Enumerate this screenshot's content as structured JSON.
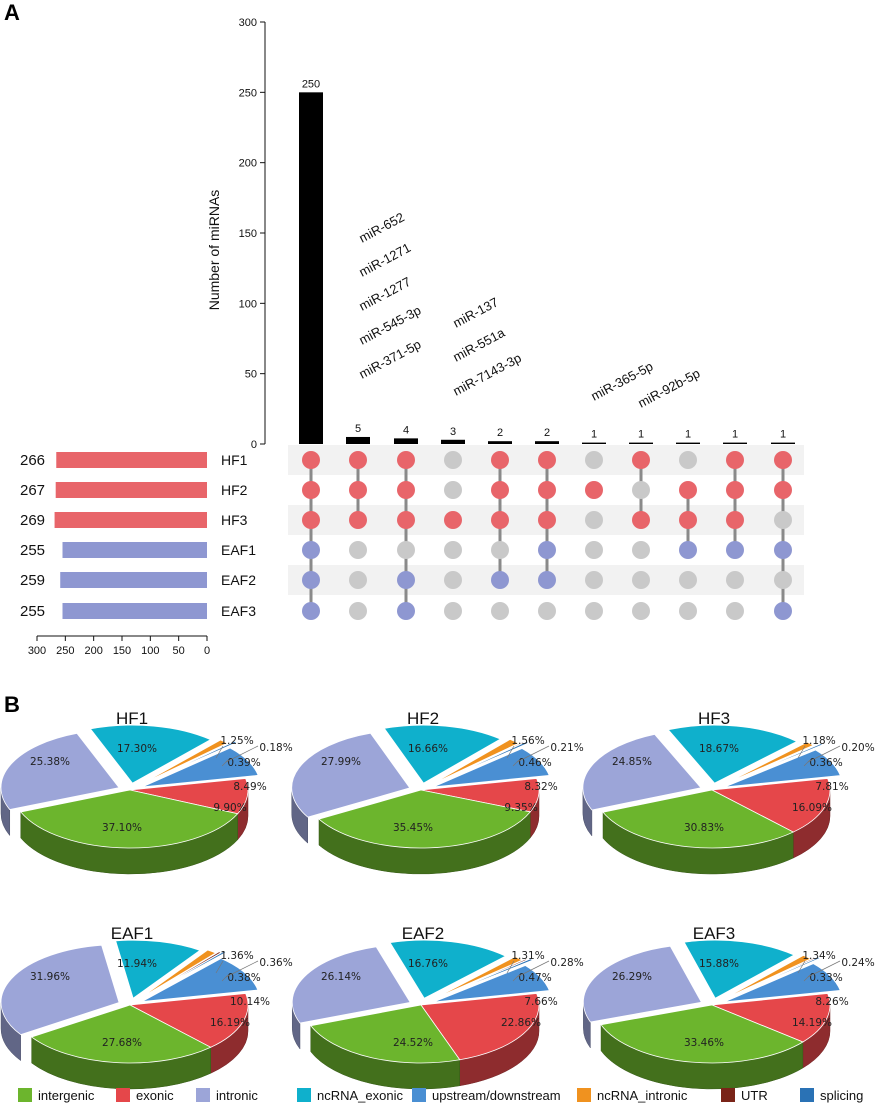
{
  "panels": {
    "a": "A",
    "b": "B"
  },
  "colors": {
    "hf": "#e8656a",
    "eaf": "#8e97d1",
    "inactive": "#c9c9c9",
    "connector": "#8a8a8a",
    "bar": "#000000",
    "stripe": "#f2f2f2"
  },
  "chart_data": [
    {
      "type": "bar",
      "title": "UpSet plot of miRNA intersections",
      "ylabel": "Number of miRNAs",
      "ylim": [
        0,
        300
      ],
      "yticks": [
        0,
        50,
        100,
        150,
        200,
        250,
        300
      ],
      "values": [
        250,
        5,
        4,
        3,
        2,
        2,
        1,
        1,
        1,
        1,
        1
      ],
      "sets": [
        "HF1",
        "HF2",
        "HF3",
        "EAF1",
        "EAF2",
        "EAF3"
      ],
      "set_sizes": [
        266,
        267,
        269,
        255,
        259,
        255
      ],
      "set_groups": [
        "hf",
        "hf",
        "hf",
        "eaf",
        "eaf",
        "eaf"
      ],
      "set_size_axis": {
        "ticks": [
          300,
          250,
          200,
          150,
          100,
          50,
          0
        ],
        "range": [
          0,
          300
        ]
      },
      "memberships": [
        [
          1,
          1,
          1,
          1,
          1,
          1
        ],
        [
          1,
          1,
          1,
          0,
          0,
          0
        ],
        [
          1,
          1,
          1,
          0,
          1,
          1
        ],
        [
          0,
          0,
          1,
          0,
          0,
          0
        ],
        [
          1,
          1,
          1,
          0,
          1,
          0
        ],
        [
          1,
          1,
          1,
          1,
          1,
          0
        ],
        [
          0,
          1,
          0,
          0,
          0,
          0
        ],
        [
          1,
          0,
          1,
          0,
          0,
          0
        ],
        [
          0,
          1,
          1,
          1,
          0,
          0
        ],
        [
          1,
          1,
          1,
          1,
          0,
          0
        ],
        [
          1,
          1,
          0,
          1,
          0,
          1
        ]
      ],
      "annotations": [
        {
          "bar": 1,
          "labels": [
            "miR-652",
            "miR-1271",
            "miR-1277",
            "miR-545-3p",
            "miR-371-5p"
          ]
        },
        {
          "bar": 3,
          "labels": [
            "miR-137",
            "miR-551a",
            "miR-7143-3p"
          ]
        },
        {
          "bar": 6,
          "labels": [
            "miR-365-5p"
          ]
        },
        {
          "bar": 7,
          "labels": [
            "miR-92b-5p"
          ]
        }
      ]
    },
    {
      "type": "pie",
      "style": "3d exploded",
      "categories": [
        "intergenic",
        "exonic",
        "intronic",
        "ncRNA_exonic",
        "upstream/downstream",
        "ncRNA_intronic",
        "UTR",
        "splicing"
      ],
      "category_colors": [
        "#6cb52d",
        "#e5474a",
        "#9ca5d8",
        "#0fb0cc",
        "#4a8fd3",
        "#f0921f",
        "#7a2418",
        "#2a72b5"
      ],
      "pies": [
        {
          "title": "HF1",
          "values": [
            37.1,
            9.9,
            25.38,
            17.3,
            8.49,
            1.25,
            0.18,
            0.39
          ],
          "labels": [
            "37.10%",
            "9.90%",
            "25.38%",
            "17.30%",
            "8.49%",
            "1.25%",
            "0.18%",
            "0.39%"
          ]
        },
        {
          "title": "HF2",
          "values": [
            35.45,
            9.35,
            27.99,
            16.66,
            8.32,
            1.56,
            0.21,
            0.46
          ],
          "labels": [
            "35.45%",
            "9.35%",
            "27.99%",
            "16.66%",
            "8.32%",
            "1.56%",
            "0.21%",
            "0.46%"
          ]
        },
        {
          "title": "HF3",
          "values": [
            30.83,
            16.09,
            24.85,
            18.67,
            7.81,
            1.18,
            0.2,
            0.36
          ],
          "labels": [
            "30.83%",
            "16.09%",
            "24.85%",
            "18.67%",
            "7.81%",
            "1.18%",
            "0.20%",
            "0.36%"
          ]
        },
        {
          "title": "EAF1",
          "values": [
            27.68,
            16.19,
            31.96,
            11.94,
            10.14,
            1.36,
            0.36,
            0.38
          ],
          "labels": [
            "27.68%",
            "16.19%",
            "31.96%",
            "11.94%",
            "10.14%",
            "1.36%",
            "0.36%",
            "0.38%"
          ]
        },
        {
          "title": "EAF2",
          "values": [
            24.52,
            22.86,
            26.14,
            16.76,
            7.66,
            1.31,
            0.28,
            0.47
          ],
          "labels": [
            "24.52%",
            "22.86%",
            "26.14%",
            "16.76%",
            "7.66%",
            "1.31%",
            "0.28%",
            "0.47%"
          ]
        },
        {
          "title": "EAF3",
          "values": [
            33.46,
            14.19,
            26.29,
            15.88,
            8.26,
            1.34,
            0.24,
            0.33
          ],
          "labels": [
            "33.46%",
            "14.19%",
            "26.29%",
            "15.88%",
            "8.26%",
            "1.34%",
            "0.24%",
            "0.33%"
          ]
        }
      ]
    }
  ]
}
